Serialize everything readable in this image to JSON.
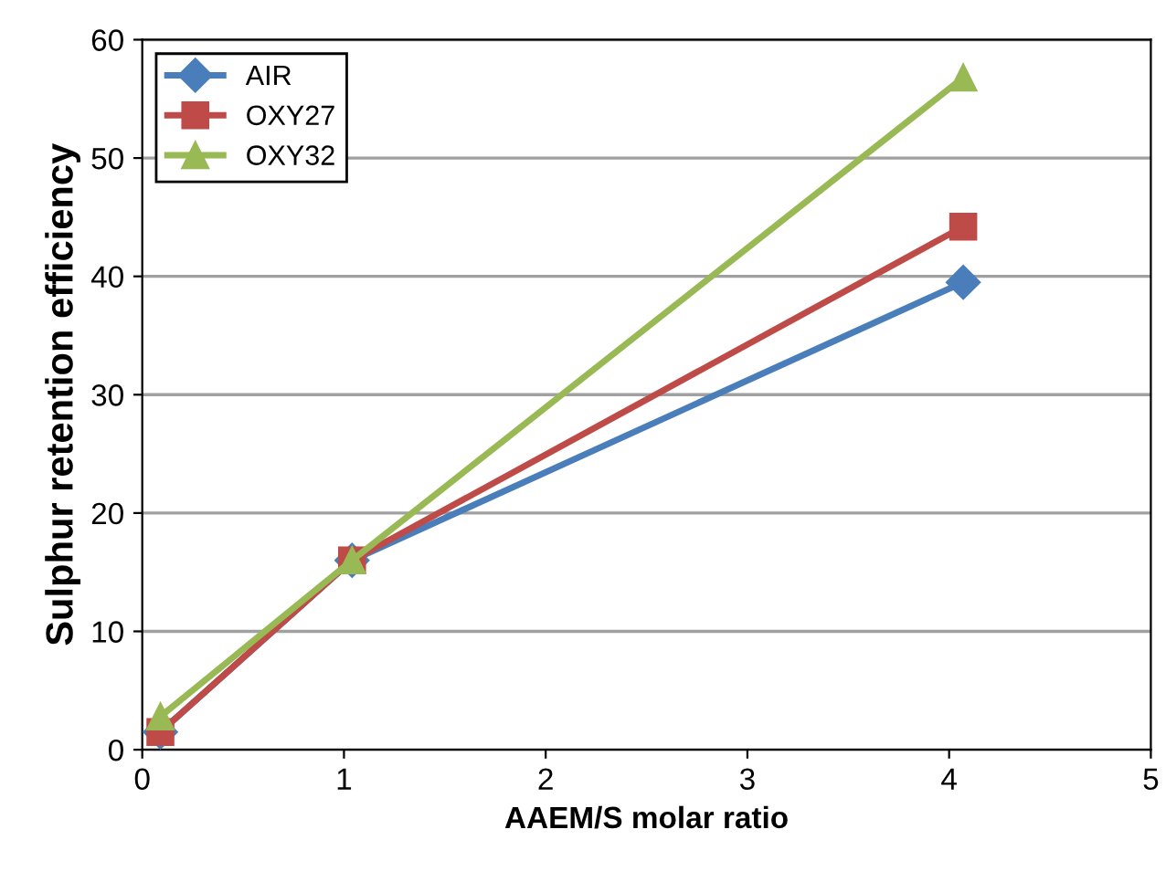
{
  "chart_data": {
    "type": "line",
    "xlabel": "AAEM/S molar ratio",
    "ylabel": "Sulphur retention efficiency",
    "xlim": [
      0,
      5
    ],
    "xticks": [
      0,
      1,
      2,
      3,
      4,
      5
    ],
    "ylim": [
      0,
      60
    ],
    "yticks": [
      0,
      10,
      20,
      30,
      40,
      50,
      60
    ],
    "grid": "y",
    "legend": "top left",
    "line_style": "solid",
    "series": [
      {
        "name": "AIR",
        "color": "#4a7ebb",
        "marker": "diamond",
        "x": [
          0.09,
          1.04,
          4.07
        ],
        "values": [
          1.5,
          16,
          39.5
        ]
      },
      {
        "name": "OXY27",
        "color": "#be4b48",
        "marker": "square",
        "x": [
          0.09,
          1.04,
          4.07
        ],
        "values": [
          1.5,
          16,
          44.2
        ]
      },
      {
        "name": "OXY32",
        "color": "#98b954",
        "marker": "triangle",
        "x": [
          0.09,
          1.04,
          4.07
        ],
        "values": [
          2.8,
          16,
          56.8
        ]
      }
    ]
  }
}
